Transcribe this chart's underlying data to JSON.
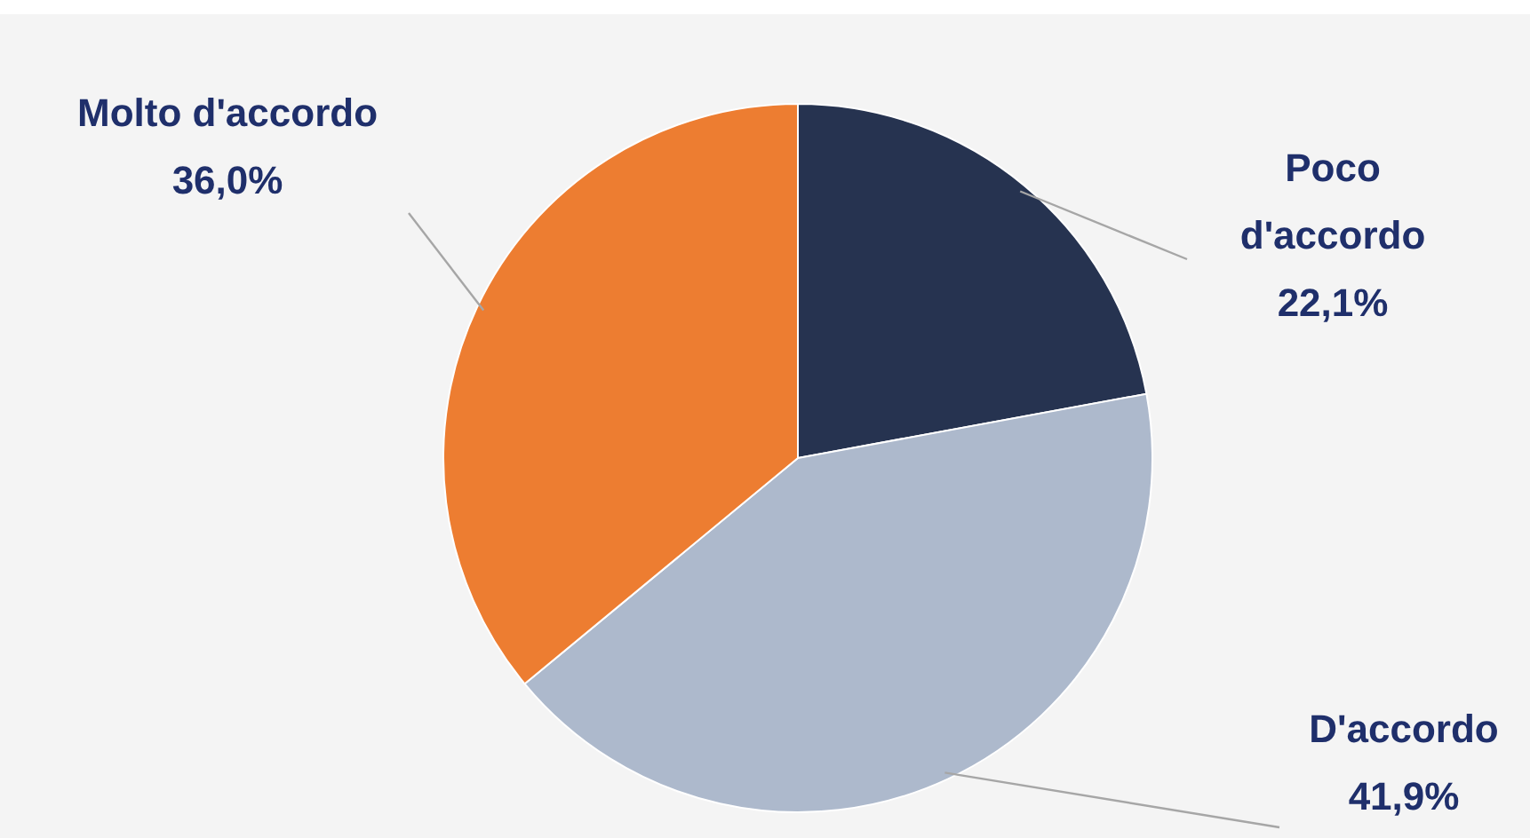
{
  "chart_data": {
    "type": "pie",
    "categories": [
      "Poco d'accordo",
      "D'accordo",
      "Molto d'accordo"
    ],
    "values": [
      22.1,
      41.9,
      36.0
    ],
    "colors": [
      "#263350",
      "#adb9cc",
      "#ed7d31"
    ],
    "value_labels": [
      "22,1%",
      "41,9%",
      "36,0%"
    ],
    "legend": false
  }
}
